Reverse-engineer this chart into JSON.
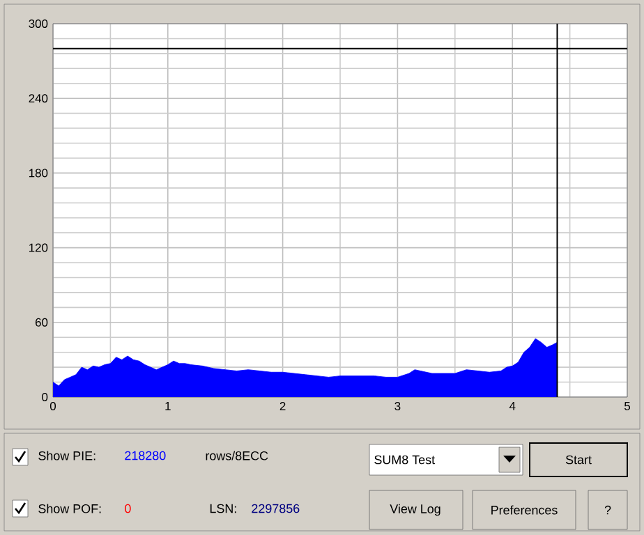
{
  "chart_data": {
    "type": "area",
    "x": [
      0,
      0.05,
      0.1,
      0.15,
      0.2,
      0.25,
      0.3,
      0.35,
      0.4,
      0.45,
      0.5,
      0.55,
      0.6,
      0.65,
      0.7,
      0.75,
      0.8,
      0.85,
      0.9,
      0.95,
      1.0,
      1.05,
      1.1,
      1.15,
      1.2,
      1.3,
      1.4,
      1.5,
      1.6,
      1.7,
      1.8,
      1.9,
      2.0,
      2.1,
      2.2,
      2.3,
      2.4,
      2.5,
      2.6,
      2.7,
      2.8,
      2.9,
      3.0,
      3.1,
      3.15,
      3.2,
      3.3,
      3.4,
      3.5,
      3.6,
      3.7,
      3.8,
      3.9,
      3.95,
      4.0,
      4.05,
      4.1,
      4.15,
      4.2,
      4.25,
      4.3,
      4.35,
      4.39
    ],
    "values": [
      12,
      9,
      14,
      16,
      18,
      24,
      22,
      25,
      24,
      26,
      27,
      32,
      30,
      33,
      30,
      29,
      26,
      24,
      22,
      24,
      26,
      29,
      27,
      27,
      26,
      25,
      23,
      22,
      21,
      22,
      21,
      20,
      20,
      19,
      18,
      17,
      16,
      17,
      17,
      17,
      17,
      16,
      16,
      19,
      22,
      21,
      19,
      19,
      19,
      22,
      21,
      20,
      21,
      24,
      25,
      28,
      36,
      40,
      47,
      44,
      40,
      42,
      44
    ],
    "color": "#0000ff",
    "xlim": [
      0,
      5
    ],
    "ylim": [
      0,
      300
    ],
    "xticks": [
      0,
      1,
      2,
      3,
      4,
      5
    ],
    "yticks": [
      0,
      60,
      120,
      180,
      240,
      300
    ],
    "grid": true,
    "ref_lines": [
      {
        "axis": "y",
        "value": 280,
        "color": "#000000"
      },
      {
        "axis": "x",
        "value": 4.39,
        "color": "#000000"
      }
    ],
    "annotations": [
      "Show PIE:",
      "218280",
      "rows/8ECC",
      "Show POF:",
      "0",
      "LSN:",
      "2297856",
      "SUM8 Test",
      "Start",
      "View Log",
      "Preferences",
      "?"
    ]
  }
}
